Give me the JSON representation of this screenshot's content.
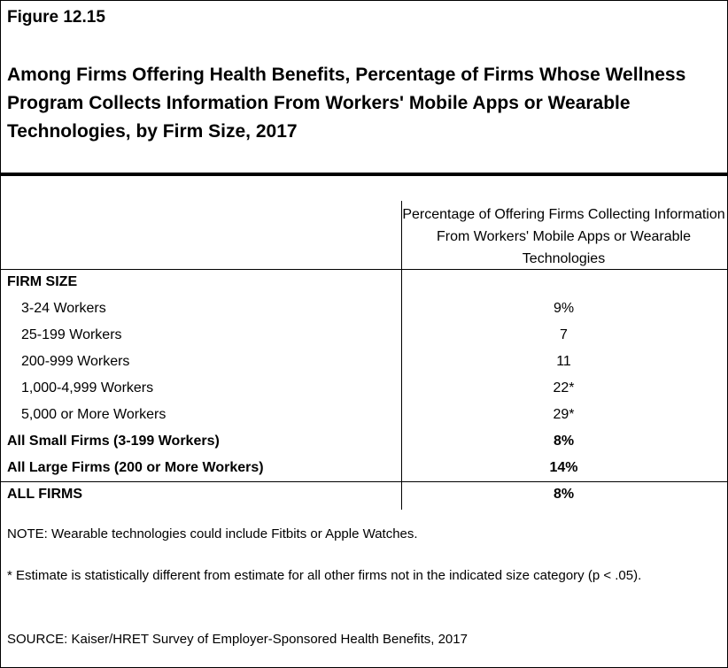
{
  "figure_label": "Figure 12.15",
  "title": "Among Firms Offering Health Benefits, Percentage of Firms Whose Wellness Program Collects Information From Workers' Mobile Apps or Wearable Technologies, by Firm Size, 2017",
  "chart_data": {
    "type": "table",
    "column_header": "Percentage of Offering Firms Collecting Information From Workers' Mobile Apps or Wearable Technologies",
    "section_label": "FIRM SIZE",
    "rows": [
      {
        "label": "3-24 Workers",
        "value": "9%"
      },
      {
        "label": "25-199 Workers",
        "value": "7"
      },
      {
        "label": "200-999 Workers",
        "value": "11"
      },
      {
        "label": "1,000-4,999 Workers",
        "value": "22*"
      },
      {
        "label": "5,000 or More Workers",
        "value": "29*"
      },
      {
        "label": "All Small Firms (3-199 Workers)",
        "value": "8%"
      },
      {
        "label": "All Large Firms (200 or More Workers)",
        "value": "14%"
      },
      {
        "label": "ALL FIRMS",
        "value": "8%"
      }
    ]
  },
  "notes": {
    "note": "NOTE: Wearable technologies could include Fitbits or Apple Watches.",
    "asterisk": "* Estimate is statistically different from estimate for all other firms not in the indicated size category (p < .05).",
    "source": "SOURCE: Kaiser/HRET Survey of Employer-Sponsored Health Benefits, 2017"
  }
}
